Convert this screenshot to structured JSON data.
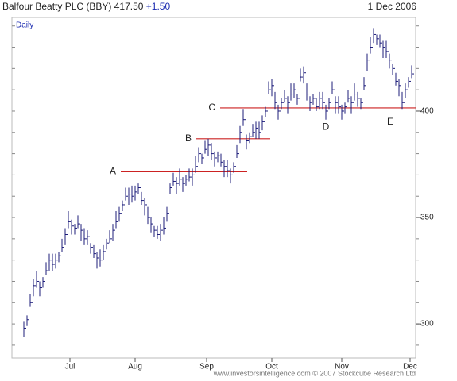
{
  "chart_data": {
    "type": "ohlc",
    "title": "Balfour Beatty PLC (BBY) 417.50",
    "change": "+1.50",
    "date": "1 Dec 2006",
    "interval": "Daily",
    "footer": "www.investorsintelligence.com  © 2007 Stockcube Research Ltd",
    "color": "#1c1c7a",
    "level_color": "#cc2222",
    "xlim": [
      -3.75,
      123.25
    ],
    "xticks": [
      {
        "value": 14.5,
        "label": "Jul"
      },
      {
        "value": 35,
        "label": "Aug"
      },
      {
        "value": 57.5,
        "label": "Sep"
      },
      {
        "value": 78,
        "label": "Oct"
      },
      {
        "value": 100,
        "label": "Nov"
      },
      {
        "value": 121.5,
        "label": "Dec"
      }
    ],
    "ylim": [
      284,
      444
    ],
    "yticks": [
      300,
      350,
      400
    ],
    "yminorticks": [
      290,
      300,
      310,
      320,
      330,
      340,
      350,
      360,
      370,
      380,
      390,
      400,
      410,
      420,
      430,
      440
    ],
    "high": [
      301,
      304,
      314,
      321,
      325,
      320,
      322,
      329,
      333,
      333,
      333,
      334,
      340,
      345,
      353,
      349,
      347,
      351,
      347,
      345,
      344,
      338,
      337,
      334,
      335,
      337,
      340,
      344,
      347,
      353,
      355,
      358,
      364,
      364,
      365,
      365,
      366,
      362,
      359,
      355,
      350,
      346,
      346,
      347,
      350,
      355,
      366,
      371,
      369,
      373,
      369,
      370,
      373,
      373,
      379,
      383,
      380,
      386,
      387,
      385,
      381,
      381,
      380,
      377,
      377,
      373,
      376,
      384,
      393,
      401,
      389,
      390,
      394,
      395,
      395,
      398,
      402,
      414,
      415,
      409,
      403,
      406,
      410,
      407,
      413,
      413,
      408,
      420,
      421,
      413,
      407,
      408,
      406,
      409,
      409,
      403,
      406,
      414,
      407,
      407,
      403,
      404,
      410,
      407,
      413,
      409,
      406,
      416,
      427,
      435,
      439,
      436,
      436,
      433,
      433,
      427,
      422,
      418,
      415,
      409,
      413,
      416,
      421.5
    ],
    "low": [
      294,
      299,
      308,
      313,
      317,
      313,
      317,
      323,
      325,
      325,
      326,
      329,
      334,
      337,
      345,
      342,
      342,
      345,
      339,
      337,
      337,
      333,
      331,
      326,
      327,
      330,
      335,
      338,
      339,
      345,
      348,
      353,
      358,
      356,
      357,
      358,
      361,
      356,
      351,
      347,
      343,
      341,
      340,
      339,
      342,
      348,
      361,
      365,
      361,
      365,
      362,
      365,
      367,
      365,
      371,
      376,
      375,
      380,
      379,
      377,
      374,
      376,
      374,
      369,
      369,
      366,
      371,
      378,
      385,
      393,
      382,
      385,
      388,
      387,
      387,
      391,
      397,
      408,
      407,
      401,
      396,
      401,
      404,
      399,
      405,
      406,
      403,
      414,
      413,
      405,
      400,
      403,
      400,
      401,
      401,
      396,
      401,
      408,
      399,
      399,
      396,
      399,
      404,
      399,
      405,
      402,
      401,
      410,
      419,
      427,
      432,
      431,
      430,
      425,
      425,
      420,
      417,
      412,
      407,
      401,
      406,
      411,
      415.5
    ],
    "close": [
      298,
      302,
      310,
      318,
      320,
      317,
      320,
      325,
      330,
      328,
      330,
      332,
      336,
      342,
      348,
      346,
      345,
      347,
      344,
      340,
      341,
      336,
      333,
      331,
      330,
      334,
      338,
      340,
      344,
      348,
      352,
      356,
      360,
      361,
      360,
      362,
      364,
      358,
      356,
      350,
      347,
      344,
      342,
      344,
      345,
      352,
      364,
      367,
      366,
      368,
      366,
      368,
      369,
      370,
      374,
      380,
      378,
      382,
      384,
      380,
      378,
      379,
      376,
      374,
      372,
      370,
      374,
      380,
      390,
      396,
      386,
      388,
      390,
      392,
      390,
      395,
      400,
      410,
      412,
      404,
      400,
      404,
      406,
      404,
      408,
      410,
      406,
      416,
      418,
      408,
      404,
      406,
      402,
      406,
      404,
      400,
      404,
      410,
      404,
      402,
      400,
      402,
      406,
      404,
      408,
      406,
      404,
      412,
      424,
      430,
      436,
      434,
      432,
      430,
      428,
      424,
      420,
      414,
      412,
      404,
      410,
      414,
      417.5
    ],
    "levels": [
      {
        "label": "A",
        "value": 371.5,
        "x": [
          30.5,
          70.25
        ]
      },
      {
        "label": "B",
        "value": 387,
        "x": [
          54.25,
          77.5
        ]
      },
      {
        "label": "C",
        "value": 401.5,
        "x": [
          61.75,
          123.25
        ]
      }
    ],
    "annotations": [
      {
        "text": "D",
        "x": 95,
        "y": 392.5
      },
      {
        "text": "E",
        "x": 115.25,
        "y": 394.8
      }
    ]
  }
}
